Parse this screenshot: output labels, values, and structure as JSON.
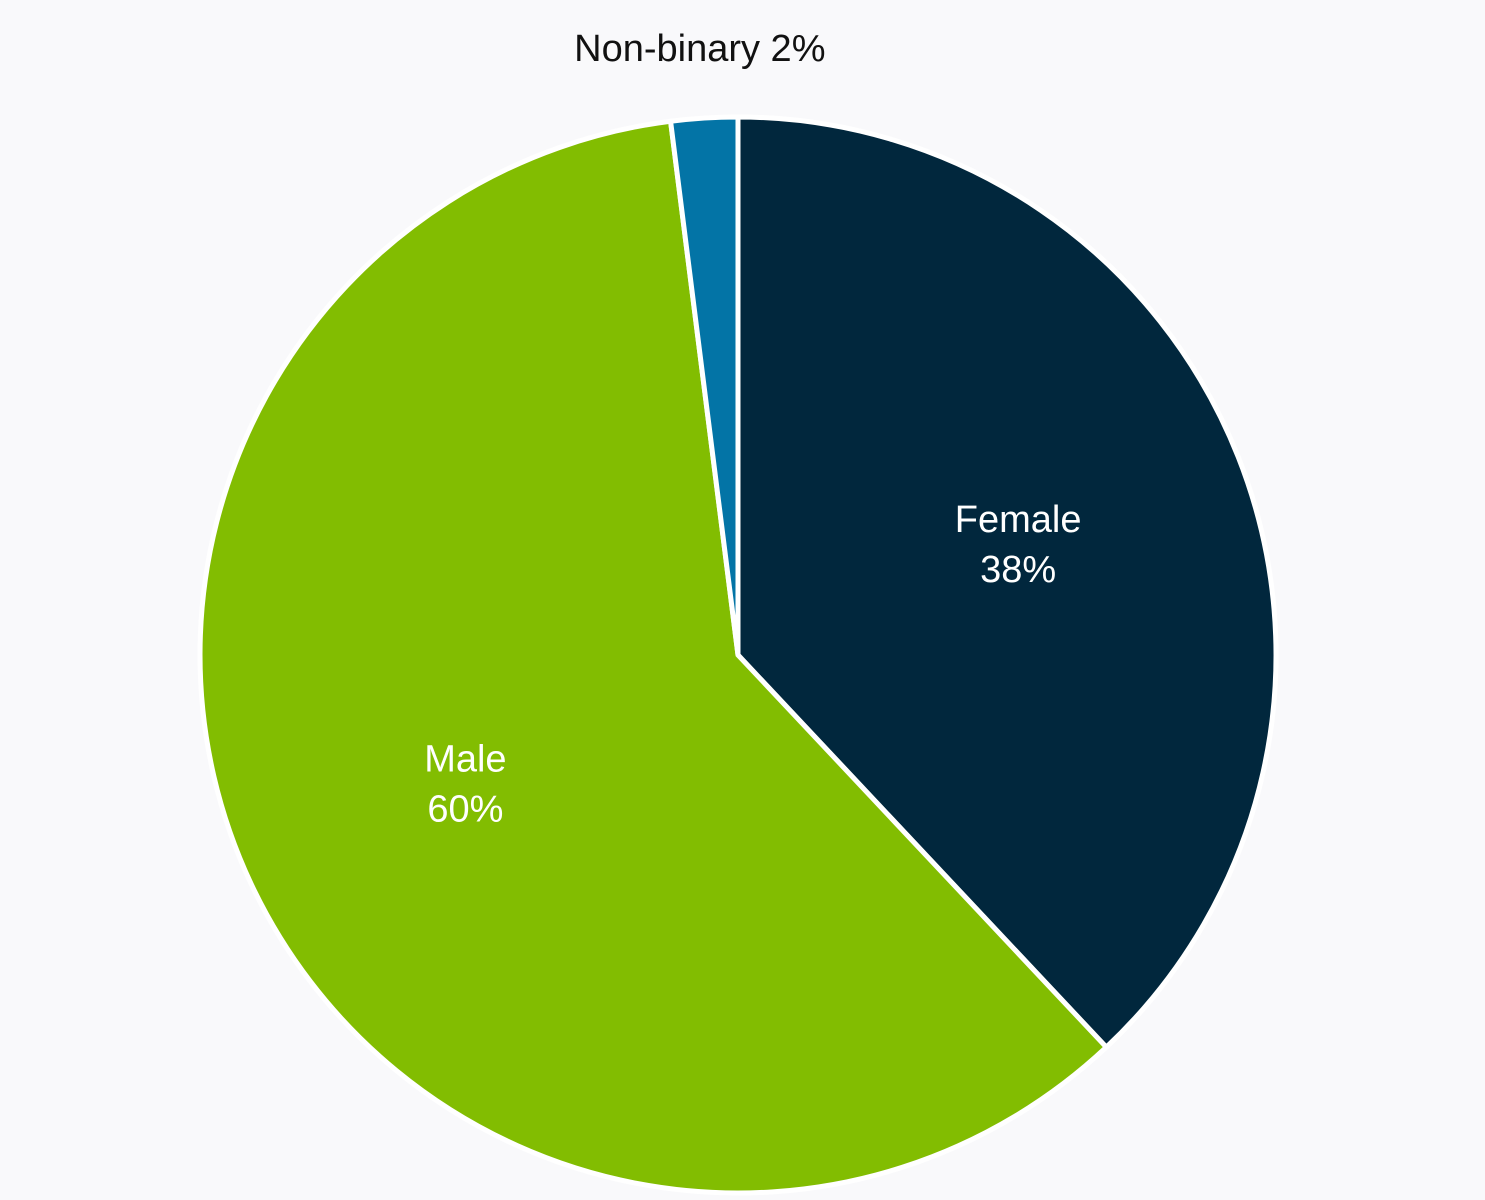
{
  "chart_data": {
    "type": "pie",
    "title": "",
    "start_angle_deg": 0,
    "direction": "clockwise",
    "label_placement": "inside",
    "slices": [
      {
        "key": "female",
        "label": "Female",
        "value_label": "38%",
        "value": 38,
        "color": "#01273d",
        "text_color": "#ffffff"
      },
      {
        "key": "male",
        "label": "Male",
        "value_label": "60%",
        "value": 60,
        "color": "#82bd01",
        "text_color": "#ffffff"
      },
      {
        "key": "non-binary",
        "label": "Non-binary 2%",
        "value": 2,
        "color": "#0374a6",
        "text_color": "#111111",
        "label_outside": true
      }
    ]
  }
}
